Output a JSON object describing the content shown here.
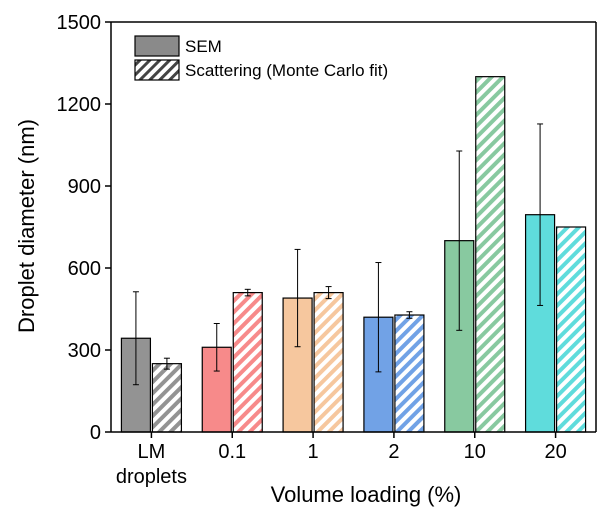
{
  "chart_data": {
    "type": "bar",
    "xlabel": "Volume loading (%)",
    "ylabel": "Droplet diameter (nm)",
    "ylim": [
      0,
      1500
    ],
    "yticks": [
      0,
      300,
      600,
      900,
      1200,
      1500
    ],
    "grid": false,
    "legend_position": "top-left",
    "categories": [
      {
        "line1": "LM",
        "line2": "droplets"
      },
      {
        "line1": "0.1",
        "line2": ""
      },
      {
        "line1": "1",
        "line2": ""
      },
      {
        "line1": "2",
        "line2": ""
      },
      {
        "line1": "10",
        "line2": ""
      },
      {
        "line1": "20",
        "line2": ""
      }
    ],
    "category_colors": [
      "#939393",
      "#f78a8a",
      "#f6c79e",
      "#71a2e6",
      "#88c9a0",
      "#5fdcdc"
    ],
    "series": [
      {
        "name": "SEM",
        "pattern": "solid",
        "values": [
          343,
          310,
          490,
          420,
          700,
          795
        ],
        "errors": [
          170,
          87,
          178,
          200,
          328,
          332
        ]
      },
      {
        "name": "Scattering (Monte Carlo fit)",
        "pattern": "hatched",
        "values": [
          250,
          510,
          510,
          428,
          1300,
          750
        ],
        "errors": [
          20,
          12,
          22,
          12,
          null,
          null
        ]
      }
    ]
  }
}
